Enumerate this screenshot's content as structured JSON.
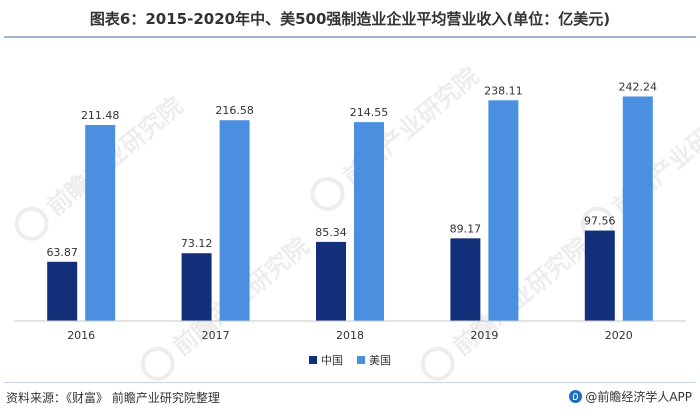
{
  "title": "图表6：2015-2020年中、美500强制造业企业平均营业收入(单位：亿美元)",
  "source": "资料来源：《财富》 前瞻产业研究院整理",
  "brand": "@前瞻经济学人APP",
  "watermark_text": "前瞻产业研究院",
  "colors": {
    "china": "#12307a",
    "usa": "#4a8fe0",
    "axis": "#c8c8c8",
    "rule": "#9fb3cc"
  },
  "chart_data": {
    "type": "bar",
    "categories": [
      "2016",
      "2017",
      "2018",
      "2019",
      "2020"
    ],
    "series": [
      {
        "name": "中国",
        "color": "#12307a",
        "values": [
          63.87,
          73.12,
          85.34,
          89.17,
          97.56
        ]
      },
      {
        "name": "美国",
        "color": "#4a8fe0",
        "values": [
          211.48,
          216.58,
          214.55,
          238.11,
          242.24
        ]
      }
    ],
    "value_labels": {
      "中国": [
        "63.87",
        "73.12",
        "85.34",
        "89.17",
        "97.56"
      ],
      "美国": [
        "211.48",
        "216.58",
        "214.55",
        "238.11",
        "242.24"
      ]
    },
    "ylim": [
      0,
      260
    ],
    "grid": false,
    "legend_position": "bottom-center"
  }
}
